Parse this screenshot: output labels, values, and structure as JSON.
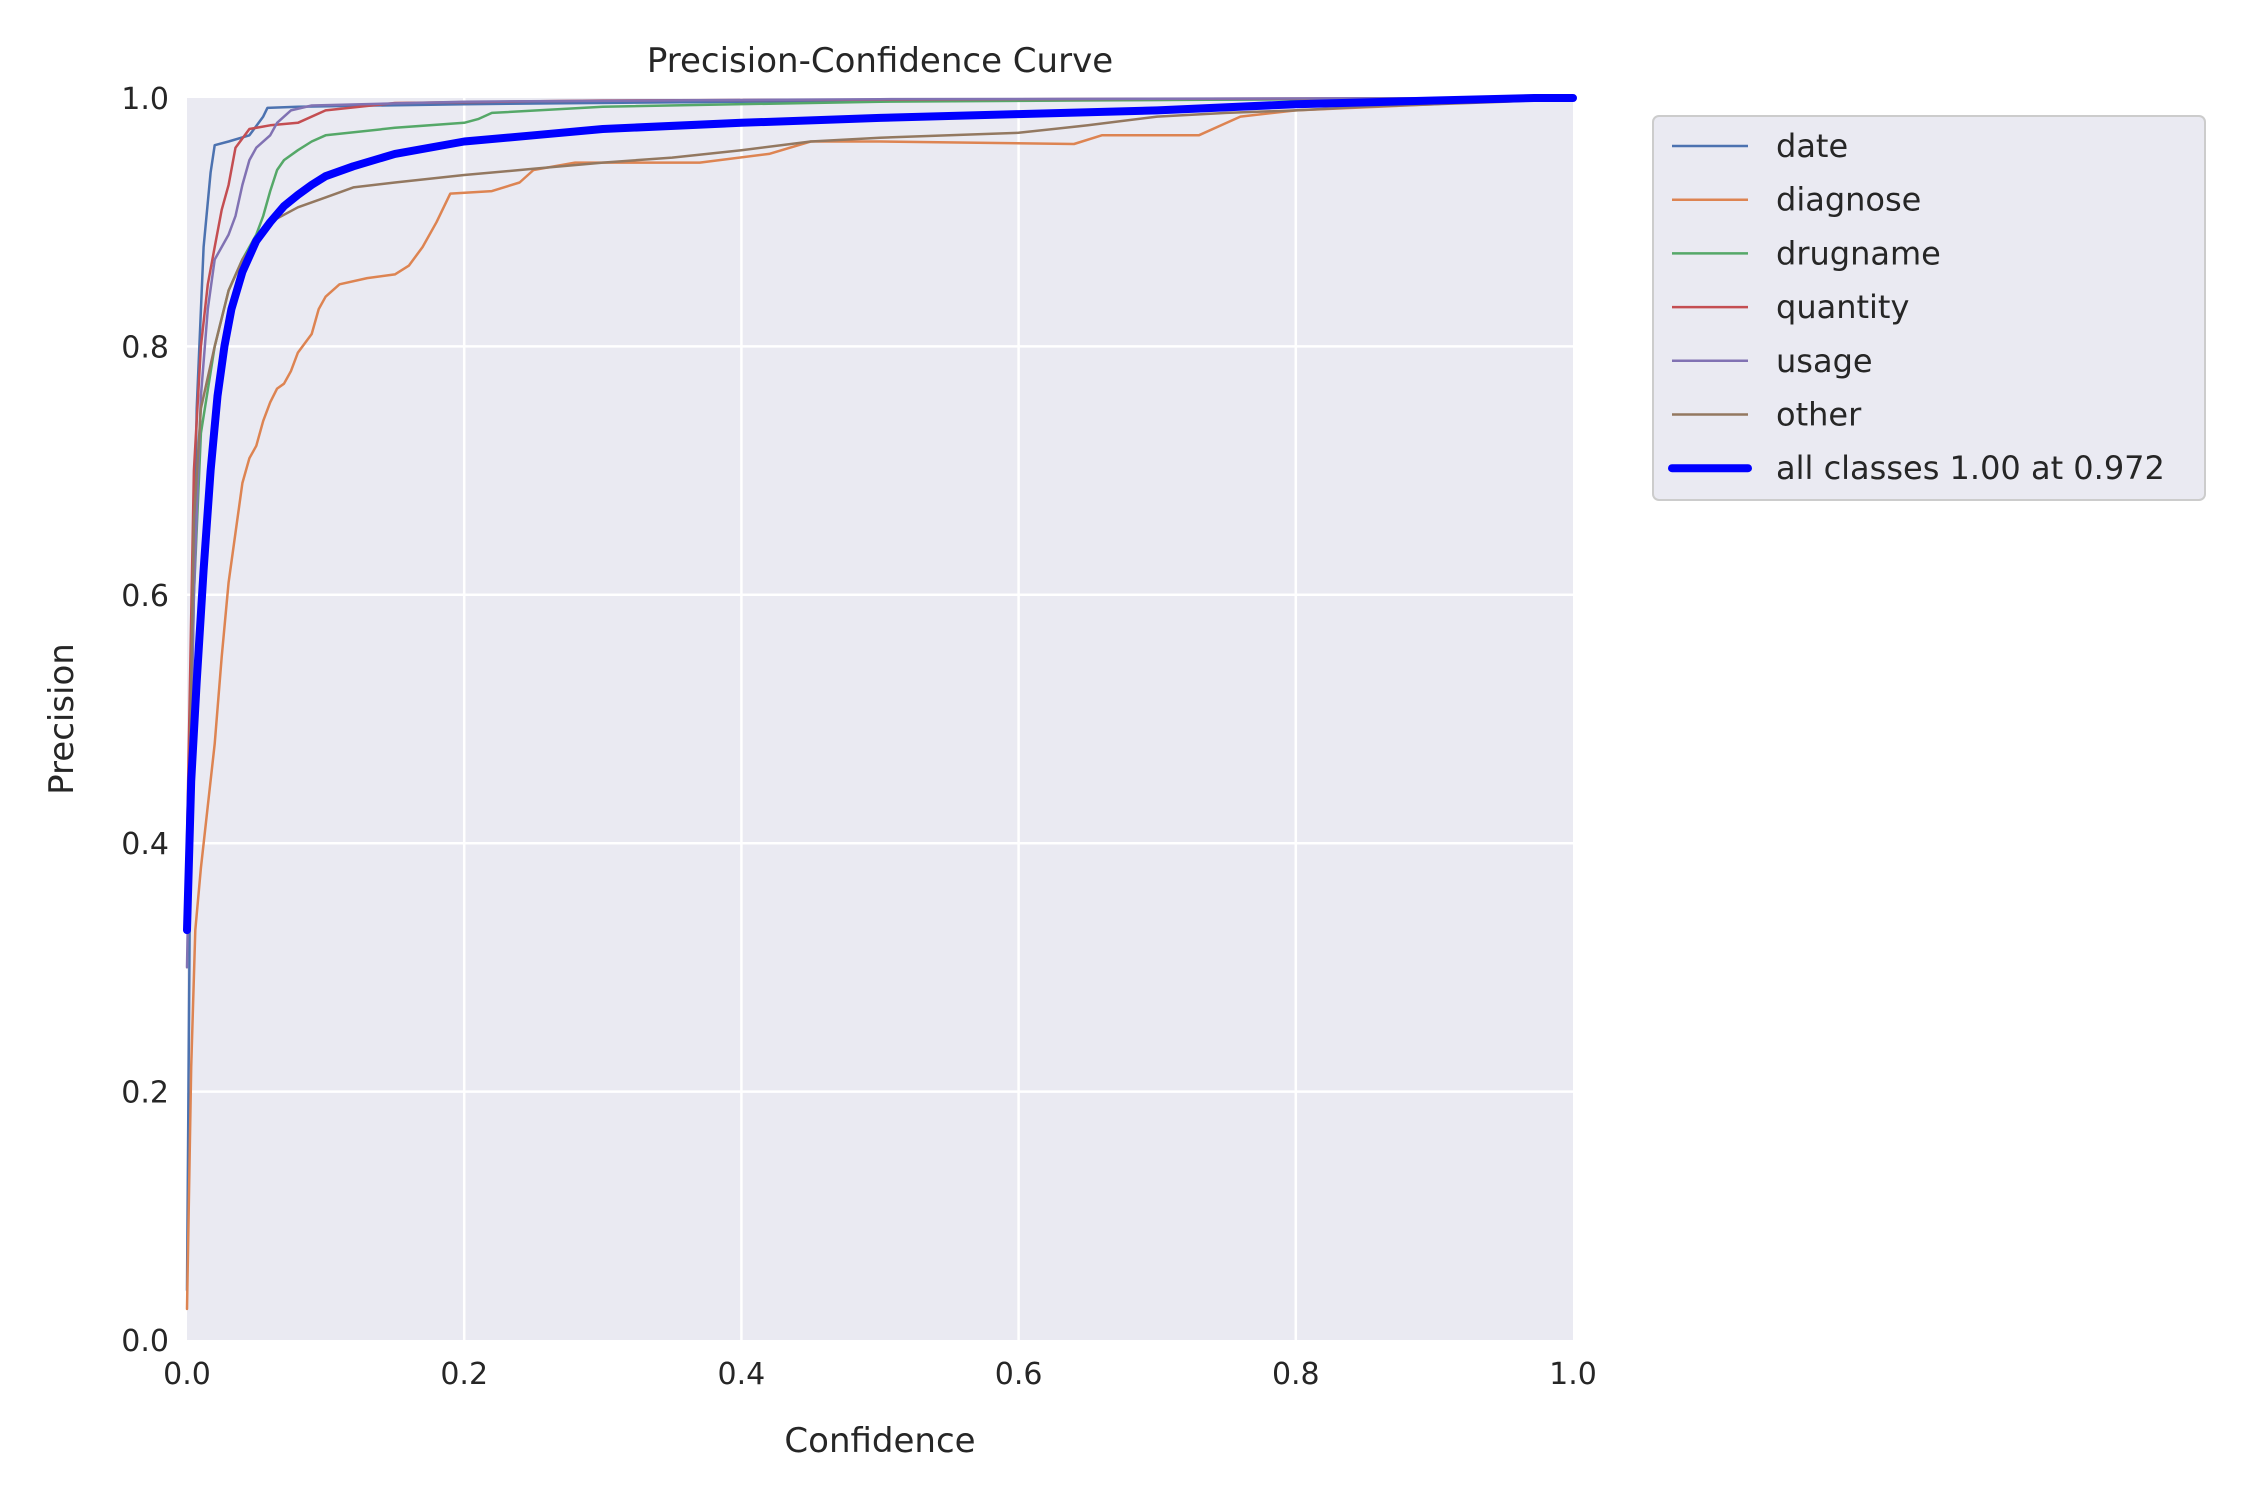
{
  "chart_data": {
    "type": "line",
    "title": "Precision-Confidence Curve",
    "xlabel": "Confidence",
    "ylabel": "Precision",
    "xlim": [
      0,
      1
    ],
    "ylim": [
      0,
      1
    ],
    "xticks": [
      "0.0",
      "0.2",
      "0.4",
      "0.6",
      "0.8",
      "1.0"
    ],
    "yticks": [
      "0.0",
      "0.2",
      "0.4",
      "0.6",
      "0.8",
      "1.0"
    ],
    "grid": true,
    "background": "#eaeaf2",
    "legend_position": "outside upper right",
    "series": [
      {
        "name": "date",
        "color": "#4c72b0",
        "line_weight": "thin",
        "points": [
          [
            0,
            0.04
          ],
          [
            0.003,
            0.5
          ],
          [
            0.007,
            0.75
          ],
          [
            0.012,
            0.88
          ],
          [
            0.017,
            0.94
          ],
          [
            0.02,
            0.962
          ],
          [
            0.03,
            0.965
          ],
          [
            0.045,
            0.97
          ],
          [
            0.055,
            0.985
          ],
          [
            0.058,
            0.992
          ],
          [
            0.08,
            0.993
          ],
          [
            0.2,
            0.995
          ],
          [
            0.4,
            0.997
          ],
          [
            0.6,
            0.998
          ],
          [
            0.8,
            0.999
          ],
          [
            1.0,
            1.0
          ]
        ]
      },
      {
        "name": "diagnose",
        "color": "#dd8452",
        "line_weight": "thin",
        "points": [
          [
            0,
            0.025
          ],
          [
            0.003,
            0.22
          ],
          [
            0.006,
            0.33
          ],
          [
            0.01,
            0.38
          ],
          [
            0.015,
            0.43
          ],
          [
            0.02,
            0.48
          ],
          [
            0.025,
            0.55
          ],
          [
            0.03,
            0.61
          ],
          [
            0.035,
            0.65
          ],
          [
            0.04,
            0.69
          ],
          [
            0.045,
            0.71
          ],
          [
            0.05,
            0.72
          ],
          [
            0.055,
            0.74
          ],
          [
            0.06,
            0.755
          ],
          [
            0.065,
            0.766
          ],
          [
            0.07,
            0.77
          ],
          [
            0.075,
            0.78
          ],
          [
            0.08,
            0.795
          ],
          [
            0.09,
            0.81
          ],
          [
            0.095,
            0.83
          ],
          [
            0.1,
            0.84
          ],
          [
            0.11,
            0.85
          ],
          [
            0.13,
            0.855
          ],
          [
            0.15,
            0.858
          ],
          [
            0.16,
            0.865
          ],
          [
            0.17,
            0.88
          ],
          [
            0.18,
            0.9
          ],
          [
            0.19,
            0.923
          ],
          [
            0.22,
            0.925
          ],
          [
            0.24,
            0.932
          ],
          [
            0.25,
            0.942
          ],
          [
            0.28,
            0.948
          ],
          [
            0.37,
            0.948
          ],
          [
            0.42,
            0.955
          ],
          [
            0.45,
            0.965
          ],
          [
            0.5,
            0.965
          ],
          [
            0.64,
            0.963
          ],
          [
            0.66,
            0.97
          ],
          [
            0.73,
            0.97
          ],
          [
            0.76,
            0.985
          ],
          [
            0.8,
            0.99
          ],
          [
            0.9,
            0.995
          ],
          [
            0.95,
            0.999
          ],
          [
            1.0,
            1.0
          ]
        ]
      },
      {
        "name": "drugname",
        "color": "#55a868",
        "line_weight": "thin",
        "points": [
          [
            0,
            0.33
          ],
          [
            0.005,
            0.6
          ],
          [
            0.01,
            0.73
          ],
          [
            0.02,
            0.8
          ],
          [
            0.03,
            0.845
          ],
          [
            0.04,
            0.87
          ],
          [
            0.05,
            0.89
          ],
          [
            0.055,
            0.905
          ],
          [
            0.06,
            0.925
          ],
          [
            0.065,
            0.942
          ],
          [
            0.07,
            0.95
          ],
          [
            0.08,
            0.958
          ],
          [
            0.09,
            0.965
          ],
          [
            0.1,
            0.97
          ],
          [
            0.15,
            0.976
          ],
          [
            0.2,
            0.98
          ],
          [
            0.21,
            0.983
          ],
          [
            0.22,
            0.988
          ],
          [
            0.3,
            0.993
          ],
          [
            0.5,
            0.997
          ],
          [
            0.8,
            0.999
          ],
          [
            1.0,
            1.0
          ]
        ]
      },
      {
        "name": "quantity",
        "color": "#c44e52",
        "line_weight": "thin",
        "points": [
          [
            0,
            0.4
          ],
          [
            0.005,
            0.7
          ],
          [
            0.01,
            0.8
          ],
          [
            0.015,
            0.85
          ],
          [
            0.02,
            0.88
          ],
          [
            0.025,
            0.91
          ],
          [
            0.03,
            0.93
          ],
          [
            0.035,
            0.96
          ],
          [
            0.045,
            0.975
          ],
          [
            0.06,
            0.978
          ],
          [
            0.08,
            0.98
          ],
          [
            0.1,
            0.99
          ],
          [
            0.15,
            0.996
          ],
          [
            0.3,
            0.998
          ],
          [
            0.6,
            0.999
          ],
          [
            1.0,
            1.0
          ]
        ]
      },
      {
        "name": "usage",
        "color": "#8172b3",
        "line_weight": "thin",
        "points": [
          [
            0,
            0.3
          ],
          [
            0.005,
            0.6
          ],
          [
            0.01,
            0.76
          ],
          [
            0.015,
            0.83
          ],
          [
            0.02,
            0.87
          ],
          [
            0.025,
            0.88
          ],
          [
            0.03,
            0.89
          ],
          [
            0.035,
            0.905
          ],
          [
            0.04,
            0.93
          ],
          [
            0.045,
            0.95
          ],
          [
            0.05,
            0.96
          ],
          [
            0.06,
            0.97
          ],
          [
            0.065,
            0.98
          ],
          [
            0.075,
            0.99
          ],
          [
            0.09,
            0.994
          ],
          [
            0.2,
            0.997
          ],
          [
            0.5,
            0.999
          ],
          [
            1.0,
            1.0
          ]
        ]
      },
      {
        "name": "other",
        "color": "#937860",
        "line_weight": "thin",
        "points": [
          [
            0,
            0.33
          ],
          [
            0.005,
            0.66
          ],
          [
            0.01,
            0.75
          ],
          [
            0.02,
            0.8
          ],
          [
            0.03,
            0.845
          ],
          [
            0.04,
            0.87
          ],
          [
            0.05,
            0.885
          ],
          [
            0.06,
            0.9
          ],
          [
            0.08,
            0.912
          ],
          [
            0.1,
            0.92
          ],
          [
            0.12,
            0.928
          ],
          [
            0.15,
            0.932
          ],
          [
            0.2,
            0.938
          ],
          [
            0.25,
            0.943
          ],
          [
            0.3,
            0.948
          ],
          [
            0.35,
            0.952
          ],
          [
            0.4,
            0.958
          ],
          [
            0.45,
            0.965
          ],
          [
            0.5,
            0.968
          ],
          [
            0.55,
            0.97
          ],
          [
            0.6,
            0.972
          ],
          [
            0.65,
            0.978
          ],
          [
            0.7,
            0.985
          ],
          [
            0.75,
            0.988
          ],
          [
            0.8,
            0.99
          ],
          [
            0.85,
            0.993
          ],
          [
            0.9,
            0.995
          ],
          [
            0.95,
            0.997
          ],
          [
            1.0,
            1.0
          ]
        ]
      },
      {
        "name": "all classes 1.00 at 0.972",
        "color": "#0000ff",
        "line_weight": "thick",
        "points": [
          [
            0,
            0.33
          ],
          [
            0.003,
            0.45
          ],
          [
            0.007,
            0.53
          ],
          [
            0.012,
            0.62
          ],
          [
            0.017,
            0.7
          ],
          [
            0.022,
            0.76
          ],
          [
            0.027,
            0.8
          ],
          [
            0.032,
            0.83
          ],
          [
            0.04,
            0.86
          ],
          [
            0.05,
            0.885
          ],
          [
            0.06,
            0.9
          ],
          [
            0.07,
            0.913
          ],
          [
            0.08,
            0.922
          ],
          [
            0.09,
            0.93
          ],
          [
            0.1,
            0.937
          ],
          [
            0.12,
            0.945
          ],
          [
            0.15,
            0.955
          ],
          [
            0.2,
            0.965
          ],
          [
            0.25,
            0.97
          ],
          [
            0.3,
            0.975
          ],
          [
            0.4,
            0.98
          ],
          [
            0.5,
            0.984
          ],
          [
            0.6,
            0.987
          ],
          [
            0.7,
            0.99
          ],
          [
            0.8,
            0.995
          ],
          [
            0.9,
            0.998
          ],
          [
            0.972,
            1.0
          ],
          [
            1.0,
            1.0
          ]
        ]
      }
    ]
  }
}
